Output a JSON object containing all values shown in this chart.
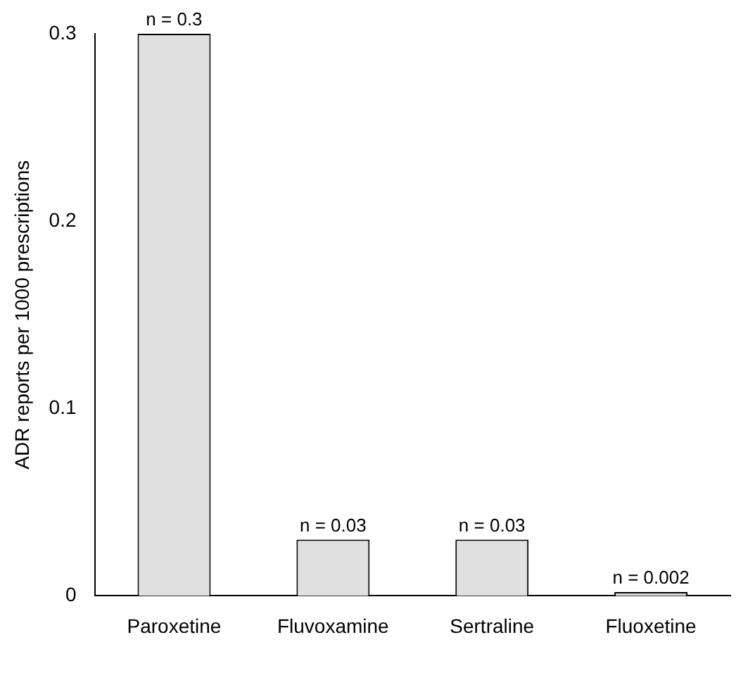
{
  "chart_data": {
    "type": "bar",
    "ylabel": "ADR reports per 1000 prescriptions",
    "categories": [
      "Paroxetine",
      "Fluvoxamine",
      "Sertraline",
      "Fluoxetine"
    ],
    "values": [
      0.3,
      0.03,
      0.03,
      0.002
    ],
    "color": "#e0e0e0",
    "value_labels": [
      "n = 0.3",
      "n = 0.03",
      "n = 0.03",
      "n = 0.002"
    ],
    "ylim": [
      0,
      0.3
    ],
    "yticks": [
      0,
      0.1,
      0.2,
      0.3
    ],
    "grid": false,
    "legend": false
  }
}
